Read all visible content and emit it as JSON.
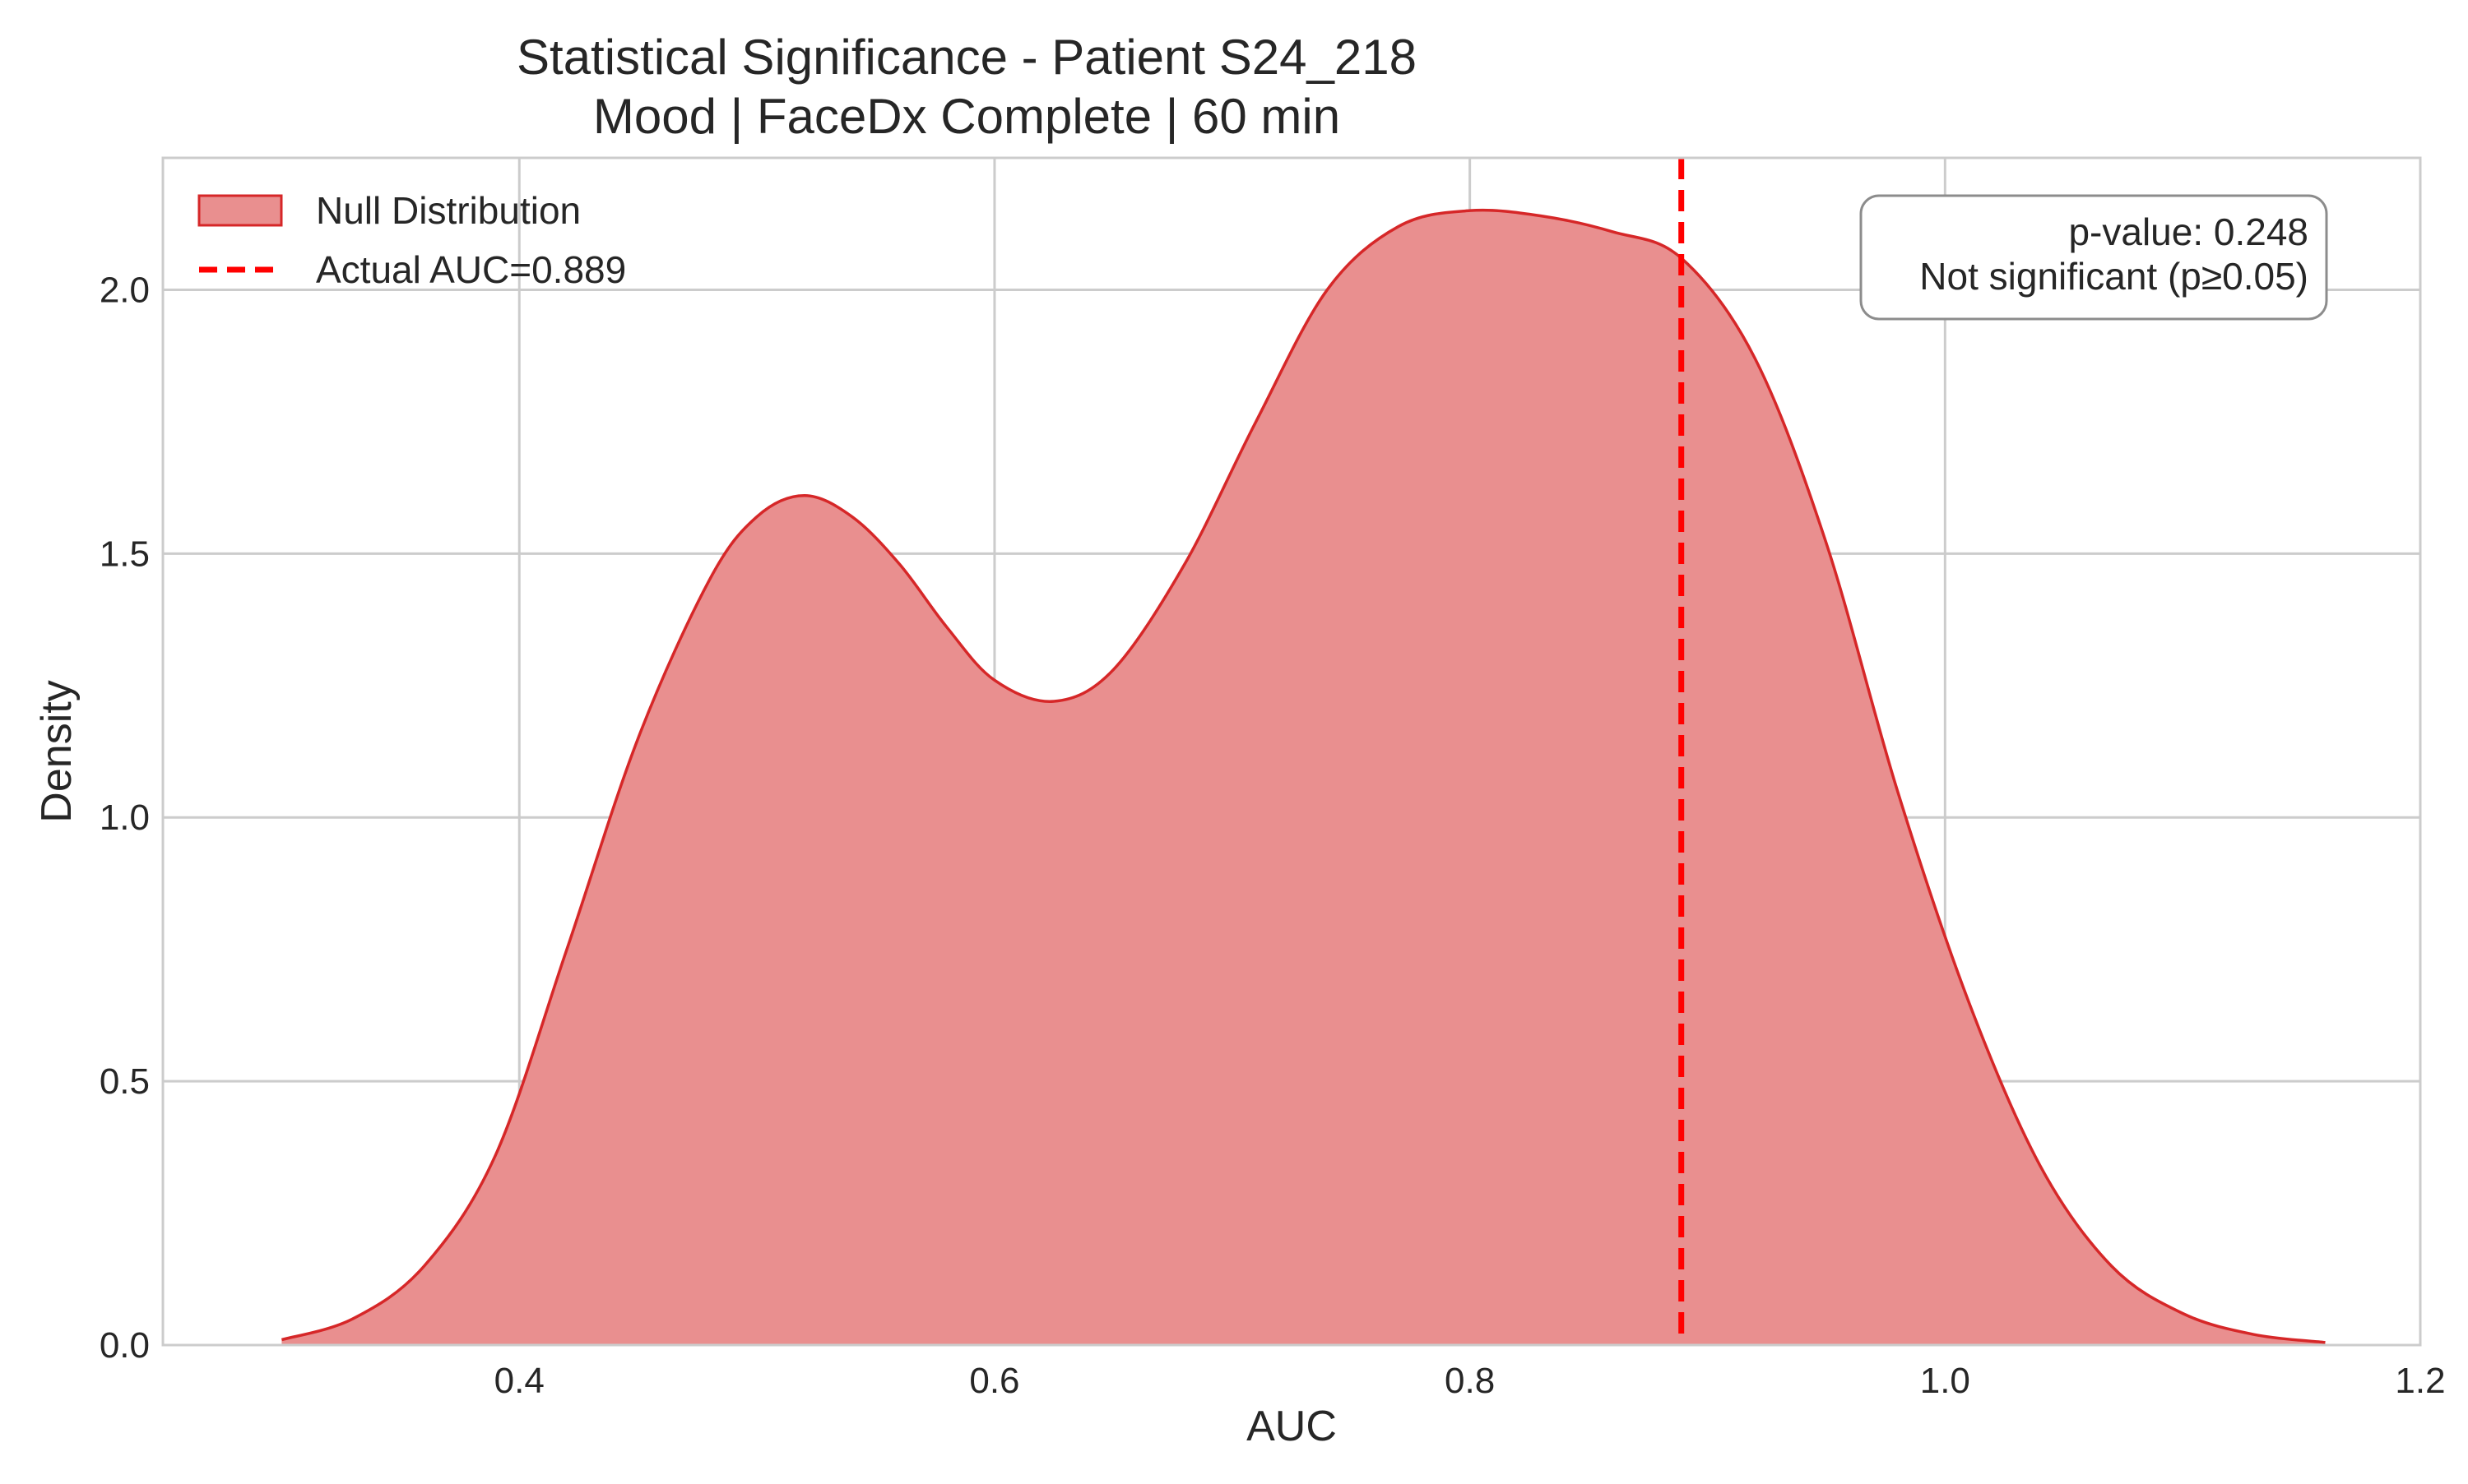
{
  "chart_data": {
    "type": "area",
    "title": "Statistical Significance - Patient S24_218",
    "subtitle": "Mood | FaceDx Complete | 60 min",
    "xlabel": "AUC",
    "ylabel": "Density",
    "xlim": [
      0.25,
      1.2
    ],
    "ylim": [
      0,
      2.25
    ],
    "xticks": [
      0.4,
      0.6,
      0.8,
      1.0,
      1.2
    ],
    "xtick_labels": [
      "0.4",
      "0.6",
      "0.8",
      "1.0",
      "1.2"
    ],
    "yticks": [
      0.0,
      0.5,
      1.0,
      1.5,
      2.0
    ],
    "ytick_labels": [
      "0.0",
      "0.5",
      "1.0",
      "1.5",
      "2.0"
    ],
    "grid": true,
    "legend_position": "top-left",
    "series": [
      {
        "name": "Null Distribution",
        "kind": "density",
        "color": "#d62728",
        "fill": "#e98f8f",
        "x": [
          0.3,
          0.33,
          0.36,
          0.39,
          0.42,
          0.45,
          0.48,
          0.5,
          0.52,
          0.54,
          0.56,
          0.58,
          0.6,
          0.625,
          0.65,
          0.68,
          0.71,
          0.74,
          0.77,
          0.8,
          0.83,
          0.86,
          0.889,
          0.92,
          0.95,
          0.98,
          1.01,
          1.04,
          1.07,
          1.1,
          1.13,
          1.16
        ],
        "y": [
          0.01,
          0.05,
          0.15,
          0.36,
          0.75,
          1.15,
          1.45,
          1.57,
          1.61,
          1.57,
          1.48,
          1.36,
          1.26,
          1.22,
          1.28,
          1.48,
          1.75,
          2.0,
          2.12,
          2.15,
          2.14,
          2.11,
          2.06,
          1.87,
          1.52,
          1.05,
          0.65,
          0.34,
          0.15,
          0.06,
          0.02,
          0.005
        ]
      }
    ],
    "reference_line": {
      "name": "Actual AUC=0.889",
      "x": 0.889,
      "color": "#ff0000",
      "style": "dashed"
    },
    "annotation": {
      "line1": "p-value: 0.248",
      "line2": "Not significant (p≥0.05)"
    }
  }
}
